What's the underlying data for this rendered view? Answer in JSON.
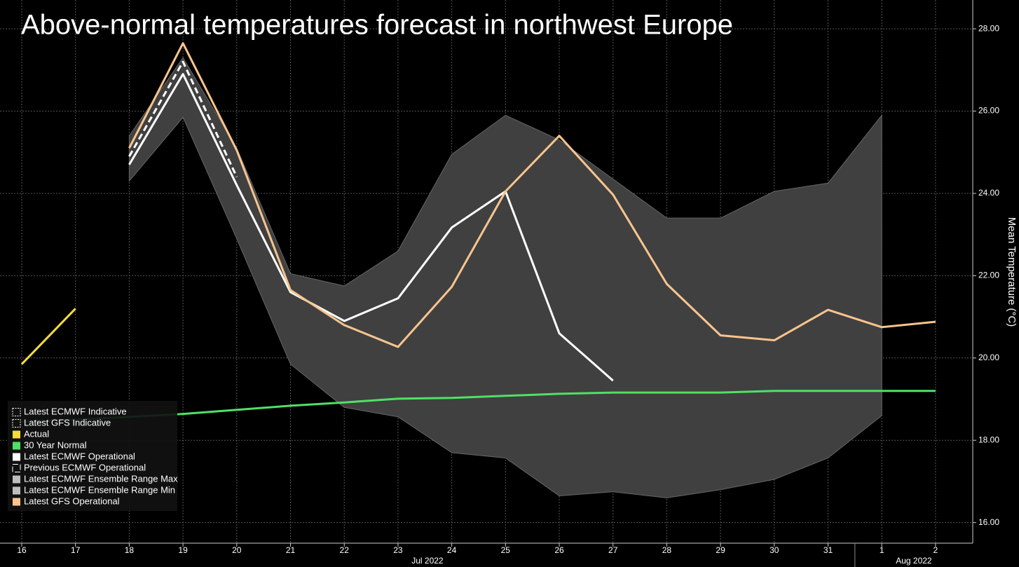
{
  "chart_data": {
    "type": "line",
    "title": "Above-normal temperatures forecast in northwest Europe",
    "y_axis_label": "Mean Temperature (°C)",
    "categories": [
      "16",
      "17",
      "18",
      "19",
      "20",
      "21",
      "22",
      "23",
      "24",
      "25",
      "26",
      "27",
      "28",
      "29",
      "30",
      "31",
      "1",
      "2"
    ],
    "x_groups": [
      "Jul 2022",
      "Aug 2022"
    ],
    "ylim": [
      15.5,
      28.7
    ],
    "yticks": [
      {
        "value": 16,
        "label": "16.00"
      },
      {
        "value": 18,
        "label": "18.00"
      },
      {
        "value": 20,
        "label": "20.00"
      },
      {
        "value": 22,
        "label": "22.00"
      },
      {
        "value": 24,
        "label": "24.00"
      },
      {
        "value": 26,
        "label": "26.00"
      },
      {
        "value": 28,
        "label": "28.00"
      }
    ],
    "grid": true,
    "legend": "lower left",
    "series": [
      {
        "name": "Latest ECMWF Indicative",
        "color": "#ffffff",
        "style": "indicative",
        "values": [
          null,
          null,
          null,
          null,
          null,
          null,
          null,
          null,
          null,
          null,
          null,
          null,
          null,
          null,
          null,
          null,
          null,
          null
        ]
      },
      {
        "name": "Latest GFS Indicative",
        "color": "#ffffff",
        "style": "indicative",
        "values": [
          null,
          null,
          null,
          null,
          null,
          null,
          null,
          null,
          null,
          null,
          null,
          null,
          null,
          null,
          null,
          null,
          null,
          null
        ]
      },
      {
        "name": "Actual",
        "color": "#f5dd3a",
        "style": "solid",
        "values": [
          19.85,
          21.2,
          null,
          null,
          null,
          null,
          null,
          null,
          null,
          null,
          null,
          null,
          null,
          null,
          null,
          null,
          null,
          null
        ]
      },
      {
        "name": "30 Year Normal",
        "color": "#4fe164",
        "style": "solid",
        "values": [
          18.45,
          18.5,
          18.57,
          18.64,
          18.74,
          18.84,
          18.92,
          19.01,
          19.03,
          19.08,
          19.13,
          19.16,
          19.16,
          19.16,
          19.2,
          19.2,
          19.2,
          19.2
        ]
      },
      {
        "name": "Latest ECMWF Operational",
        "color": "#ffffff",
        "style": "solid",
        "values": [
          null,
          null,
          24.7,
          26.9,
          24.2,
          21.6,
          20.9,
          21.45,
          23.17,
          24.05,
          20.6,
          19.45,
          null,
          null,
          null,
          null,
          null,
          null
        ]
      },
      {
        "name": "Previous ECMWF Operational",
        "color": "#ffffff",
        "style": "dashed",
        "values": [
          null,
          null,
          24.9,
          27.2,
          24.4,
          null,
          null,
          null,
          null,
          null,
          null,
          null,
          null,
          null,
          null,
          null,
          null,
          null
        ]
      },
      {
        "name": "Latest ECMWF Ensemble Range Max",
        "color": "#bdbdbd",
        "style": "range-max",
        "values": [
          null,
          null,
          25.4,
          27.3,
          25.1,
          22.05,
          21.75,
          22.6,
          24.95,
          25.9,
          25.3,
          24.35,
          23.4,
          23.4,
          24.05,
          24.25,
          25.9,
          null
        ]
      },
      {
        "name": "Latest ECMWF Ensemble Range Min",
        "color": "#bdbdbd",
        "style": "range-min",
        "values": [
          null,
          null,
          24.3,
          25.85,
          22.9,
          19.85,
          18.8,
          18.57,
          17.7,
          17.57,
          16.65,
          16.75,
          16.6,
          16.8,
          17.05,
          17.57,
          18.6,
          null
        ]
      },
      {
        "name": "Latest GFS Operational",
        "color": "#f9c48e",
        "style": "solid",
        "values": [
          null,
          null,
          25.1,
          27.65,
          25.05,
          21.65,
          20.8,
          20.27,
          21.73,
          24.05,
          25.4,
          23.97,
          21.8,
          20.55,
          20.43,
          21.17,
          20.75,
          20.88
        ]
      }
    ]
  }
}
